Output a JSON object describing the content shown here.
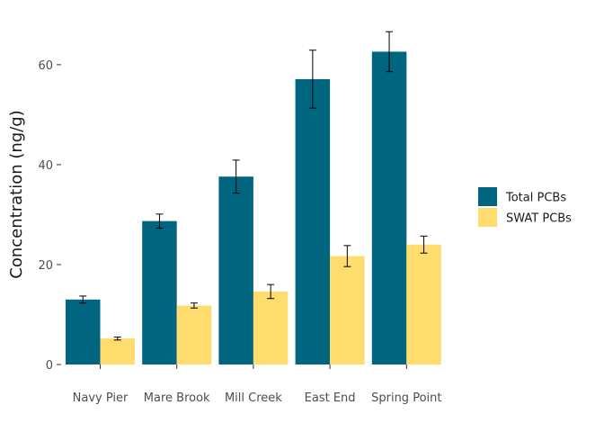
{
  "chart_data": {
    "type": "bar",
    "categories": [
      "Navy Pier",
      "Mare Brook",
      "Mill Creek",
      "East End",
      "Spring Point"
    ],
    "series": [
      {
        "name": "Total PCBs",
        "color": "#006680",
        "values": [
          13.0,
          28.7,
          37.6,
          57.1,
          62.6
        ],
        "errors": [
          0.7,
          1.4,
          3.3,
          5.8,
          4.0
        ]
      },
      {
        "name": "SWAT PCBs",
        "color": "#FFDC6E",
        "values": [
          5.2,
          11.8,
          14.6,
          21.7,
          24.0
        ],
        "errors": [
          0.3,
          0.5,
          1.4,
          2.1,
          1.7
        ]
      }
    ],
    "xlabel": "",
    "ylabel": "Concentration (ng/g)",
    "ylim": [
      0,
      67
    ],
    "yticks": [
      0,
      20,
      40,
      60
    ],
    "grid": false,
    "legend": "right"
  }
}
